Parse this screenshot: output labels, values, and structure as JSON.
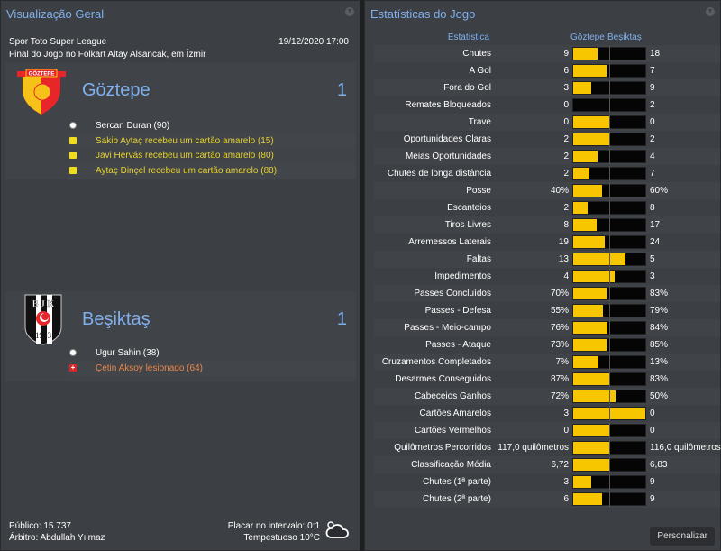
{
  "overview": {
    "title": "Visualização Geral",
    "competition": "Spor Toto Super League",
    "datetime": "19/12/2020 17:00",
    "venue": "Final do Jogo no Folkart Altay Alsancak, em İzmir",
    "home": {
      "name": "Göztepe",
      "score": "1",
      "logo_text": "GÖZTEPE",
      "events": [
        {
          "icon": "goal-ball-icon",
          "text": "Sercan Duran (90)",
          "type": "goal"
        },
        {
          "icon": "yellow-card-icon",
          "text": "Sakib Aytaç recebeu um cartão amarelo (15)",
          "type": "yellow"
        },
        {
          "icon": "yellow-card-icon",
          "text": "Javi Hervás recebeu um cartão amarelo (80)",
          "type": "yellow"
        },
        {
          "icon": "yellow-card-icon",
          "text": "Aytaç Dinçel recebeu um cartão amarelo (88)",
          "type": "yellow"
        }
      ]
    },
    "away": {
      "name": "Beşiktaş",
      "score": "1",
      "logo_text": "BJK 1903",
      "events": [
        {
          "icon": "goal-ball-icon",
          "text": "Ugur Sahin (38)",
          "type": "goal"
        },
        {
          "icon": "injury-icon",
          "text": "Çetin Aksoy lesionado (64)",
          "type": "injury"
        }
      ]
    },
    "attendance": "Público: 15.737",
    "referee": "Árbitro: Abdullah Yılmaz",
    "halftime": "Placar no intervalo: 0:1",
    "weather": "Tempestuoso 10°C",
    "weather_icon": "stormy-cloud-icon"
  },
  "stats": {
    "title": "Estatísticas do Jogo",
    "col_stat": "Estatística",
    "col_home": "Göztepe",
    "col_away": "Beşiktaş",
    "colors": {
      "home": "#f7c600",
      "away": "#050505"
    },
    "rows": [
      {
        "label": "Chutes",
        "home": "9",
        "away": "18",
        "fill": 0.333
      },
      {
        "label": "A Gol",
        "home": "6",
        "away": "7",
        "fill": 0.462
      },
      {
        "label": "Fora do Gol",
        "home": "3",
        "away": "9",
        "fill": 0.25
      },
      {
        "label": "Remates Bloqueados",
        "home": "0",
        "away": "2",
        "fill": 0
      },
      {
        "label": "Trave",
        "home": "0",
        "away": "0",
        "fill": 0.5
      },
      {
        "label": "Oportunidades Claras",
        "home": "2",
        "away": "2",
        "fill": 0.5
      },
      {
        "label": "Meias Oportunidades",
        "home": "2",
        "away": "4",
        "fill": 0.333
      },
      {
        "label": "Chutes de longa distância",
        "home": "2",
        "away": "7",
        "fill": 0.222
      },
      {
        "label": "Posse",
        "home": "40%",
        "away": "60%",
        "fill": 0.4
      },
      {
        "label": "Escanteios",
        "home": "2",
        "away": "8",
        "fill": 0.2
      },
      {
        "label": "Tiros Livres",
        "home": "8",
        "away": "17",
        "fill": 0.32
      },
      {
        "label": "Arremessos Laterais",
        "home": "19",
        "away": "24",
        "fill": 0.442
      },
      {
        "label": "Faltas",
        "home": "13",
        "away": "5",
        "fill": 0.722
      },
      {
        "label": "Impedimentos",
        "home": "4",
        "away": "3",
        "fill": 0.571
      },
      {
        "label": "Passes Concluídos",
        "home": "70%",
        "away": "83%",
        "fill": 0.458
      },
      {
        "label": "Passes - Defesa",
        "home": "55%",
        "away": "79%",
        "fill": 0.41
      },
      {
        "label": "Passes - Meio-campo",
        "home": "76%",
        "away": "84%",
        "fill": 0.475
      },
      {
        "label": "Passes - Ataque",
        "home": "73%",
        "away": "85%",
        "fill": 0.462
      },
      {
        "label": "Cruzamentos Completados",
        "home": "7%",
        "away": "13%",
        "fill": 0.35
      },
      {
        "label": "Desarmes Conseguidos",
        "home": "87%",
        "away": "83%",
        "fill": 0.512
      },
      {
        "label": "Cabeceios Ganhos",
        "home": "72%",
        "away": "50%",
        "fill": 0.59
      },
      {
        "label": "Cartões Amarelos",
        "home": "3",
        "away": "0",
        "fill": 1
      },
      {
        "label": "Cartões Vermelhos",
        "home": "0",
        "away": "0",
        "fill": 0.5
      },
      {
        "label": "Quilômetros Percorridos",
        "home": "117,0 quilômetros",
        "away": "116,0 quilômetros",
        "fill": 0.502
      },
      {
        "label": "Classificação Média",
        "home": "6,72",
        "away": "6,83",
        "fill": 0.496
      },
      {
        "label": "Chutes (1ª parte)",
        "home": "3",
        "away": "9",
        "fill": 0.25
      },
      {
        "label": "Chutes (2ª parte)",
        "home": "6",
        "away": "9",
        "fill": 0.4
      }
    ],
    "customize_label": "Personalizar"
  }
}
